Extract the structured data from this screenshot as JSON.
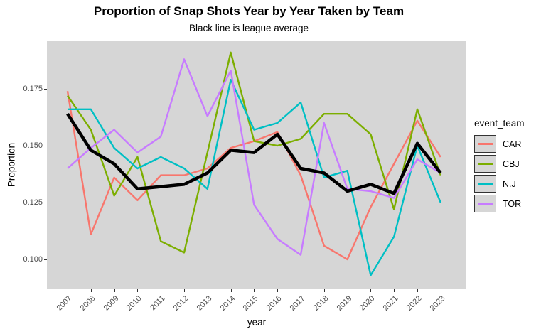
{
  "title": "Proportion of Snap Shots Year by Year Taken by Team",
  "subtitle": "Black line is league average",
  "axes": {
    "x_title": "year",
    "y_title": "Proportion",
    "x_ticks": [
      "2007",
      "2008",
      "2009",
      "2010",
      "2011",
      "2012",
      "2013",
      "2014",
      "2015",
      "2016",
      "2017",
      "2018",
      "2019",
      "2020",
      "2021",
      "2022",
      "2023"
    ],
    "y_ticks": [
      "0.100",
      "0.125",
      "0.150",
      "0.175"
    ]
  },
  "legend": {
    "title": "event_team",
    "entries": [
      {
        "label": "CAR",
        "color": "#F8766D"
      },
      {
        "label": "CBJ",
        "color": "#7CAE00"
      },
      {
        "label": "N.J",
        "color": "#00BFC4"
      },
      {
        "label": "TOR",
        "color": "#C77CFF"
      }
    ]
  },
  "colors": {
    "panel_background": "#D6D6D6",
    "tick_label": "#4D4D4D",
    "league_average_line": "#000000"
  },
  "chart_data": {
    "type": "line",
    "title": "Proportion of Snap Shots Year by Year Taken by Team",
    "subtitle": "Black line is league average",
    "xlabel": "year",
    "ylabel": "Proportion",
    "x": [
      2007,
      2008,
      2009,
      2010,
      2011,
      2012,
      2013,
      2014,
      2015,
      2016,
      2017,
      2018,
      2019,
      2020,
      2021,
      2022,
      2023
    ],
    "ylim": [
      0.087,
      0.196
    ],
    "yticks": [
      0.1,
      0.125,
      0.15,
      0.175
    ],
    "grid": false,
    "legend_position": "right",
    "legend_title": "event_team",
    "series": [
      {
        "name": "CAR",
        "color": "#F8766D",
        "values": [
          0.174,
          0.111,
          0.136,
          0.126,
          0.137,
          0.137,
          0.14,
          0.149,
          0.152,
          0.156,
          0.137,
          0.106,
          0.1,
          0.123,
          0.142,
          0.161,
          0.145
        ]
      },
      {
        "name": "CBJ",
        "color": "#7CAE00",
        "values": [
          0.172,
          0.157,
          0.128,
          0.145,
          0.108,
          0.103,
          0.147,
          0.191,
          0.152,
          0.15,
          0.153,
          0.164,
          0.164,
          0.155,
          0.122,
          0.166,
          0.137
        ]
      },
      {
        "name": "N.J",
        "color": "#00BFC4",
        "values": [
          0.166,
          0.166,
          0.149,
          0.14,
          0.145,
          0.14,
          0.131,
          0.179,
          0.157,
          0.16,
          0.169,
          0.136,
          0.139,
          0.093,
          0.11,
          0.15,
          0.125
        ]
      },
      {
        "name": "TOR",
        "color": "#C77CFF",
        "values": [
          0.14,
          0.149,
          0.157,
          0.147,
          0.154,
          0.188,
          0.163,
          0.183,
          0.124,
          0.109,
          0.102,
          0.16,
          0.131,
          0.13,
          0.127,
          0.144,
          0.138
        ]
      },
      {
        "name": "league_average",
        "color": "#000000",
        "values": [
          0.164,
          0.148,
          0.142,
          0.131,
          0.132,
          0.133,
          0.138,
          0.148,
          0.147,
          0.155,
          0.14,
          0.138,
          0.13,
          0.133,
          0.129,
          0.151,
          0.138
        ]
      }
    ]
  }
}
